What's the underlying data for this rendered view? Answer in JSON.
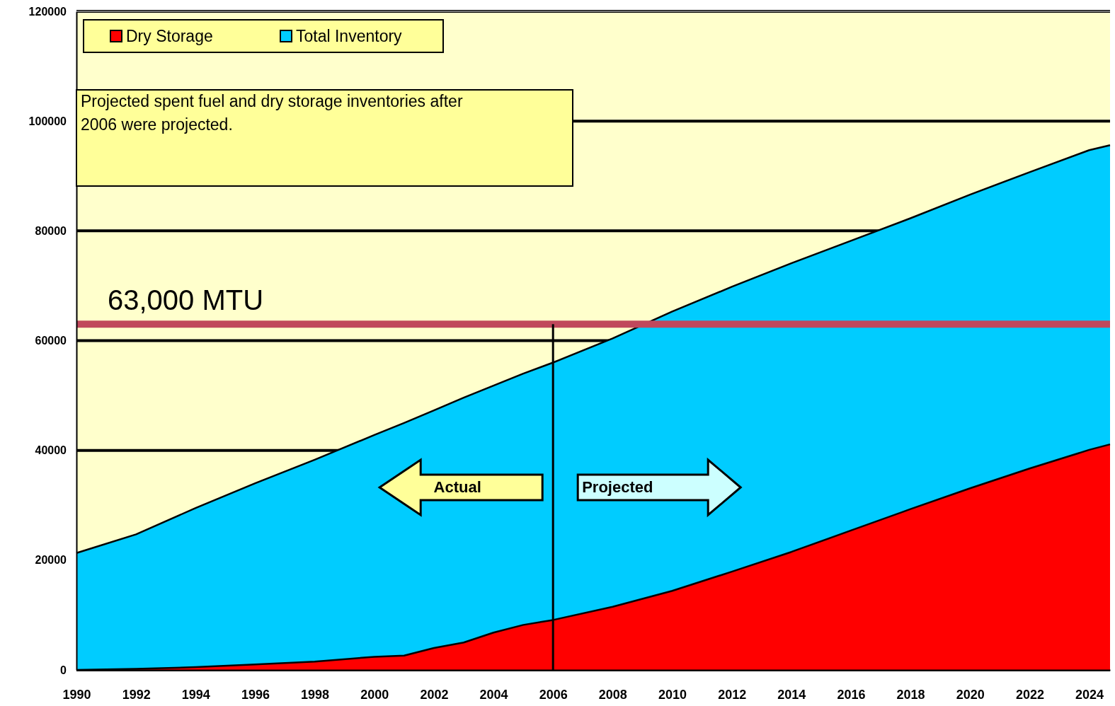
{
  "chart_data": {
    "type": "area",
    "x": [
      1990,
      1992,
      1994,
      1996,
      1998,
      2000,
      2001,
      2002,
      2003,
      2004,
      2005,
      2006,
      2008,
      2010,
      2012,
      2014,
      2016,
      2018,
      2020,
      2022,
      2024,
      2024.7
    ],
    "series": [
      {
        "name": "Total Inventory",
        "color": "#00ccff",
        "values": [
          21300,
          24700,
          29500,
          34000,
          38300,
          42800,
          45000,
          47300,
          49600,
          51800,
          54000,
          56000,
          60400,
          65300,
          69800,
          74100,
          78200,
          82300,
          86600,
          90700,
          94700,
          95600
        ]
      },
      {
        "name": "Dry Storage",
        "color": "#ff0000",
        "values": [
          0,
          200,
          500,
          1000,
          1500,
          2400,
          2600,
          4000,
          5000,
          6800,
          8200,
          9100,
          11500,
          14400,
          17900,
          21500,
          25400,
          29300,
          33100,
          36700,
          40100,
          41100
        ]
      }
    ],
    "xlim": [
      1990,
      2024.7
    ],
    "xticks": [
      1990,
      1992,
      1994,
      1996,
      1998,
      2000,
      2002,
      2004,
      2006,
      2008,
      2010,
      2012,
      2014,
      2016,
      2018,
      2020,
      2022,
      2024
    ],
    "ylim": [
      0,
      120000
    ],
    "yticks": [
      0,
      20000,
      40000,
      60000,
      80000,
      100000,
      120000
    ],
    "grid": "y",
    "legend": "top left",
    "ref_lines": [
      {
        "axis": "y",
        "value": 63000,
        "label": "63,000 MTU",
        "color": "#c0485c"
      },
      {
        "axis": "x",
        "value": 2006,
        "color": "#000000"
      }
    ],
    "annotations": [
      "Projected spent fuel and dry storage inventories after 2006 were projected.",
      "Actual",
      "Projected"
    ]
  }
}
